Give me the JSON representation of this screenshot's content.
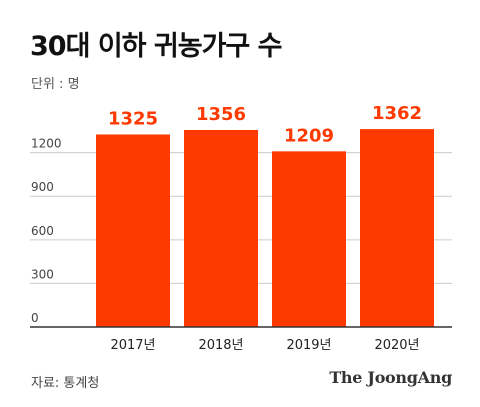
{
  "header": {
    "title": "30대 이하 귀농가구 수",
    "unit": "단위 : 명"
  },
  "footer": {
    "source": "자료: 통계청",
    "brand": "The JoongAng"
  },
  "colors": {
    "bar": "#ff3a00",
    "bar_label": "#ff3a00",
    "grid": "#cccccc",
    "axis": "#333333",
    "tick_text": "#444444"
  },
  "chart_data": {
    "type": "bar",
    "categories": [
      "2017년",
      "2018년",
      "2019년",
      "2020년"
    ],
    "values": [
      1325,
      1356,
      1209,
      1362
    ],
    "yticks": [
      0,
      300,
      600,
      900,
      1200
    ],
    "ylim": [
      0,
      1500
    ],
    "grid": true,
    "title": "30대 이하 귀농가구 수",
    "xlabel": "",
    "ylabel": "단위 : 명"
  }
}
